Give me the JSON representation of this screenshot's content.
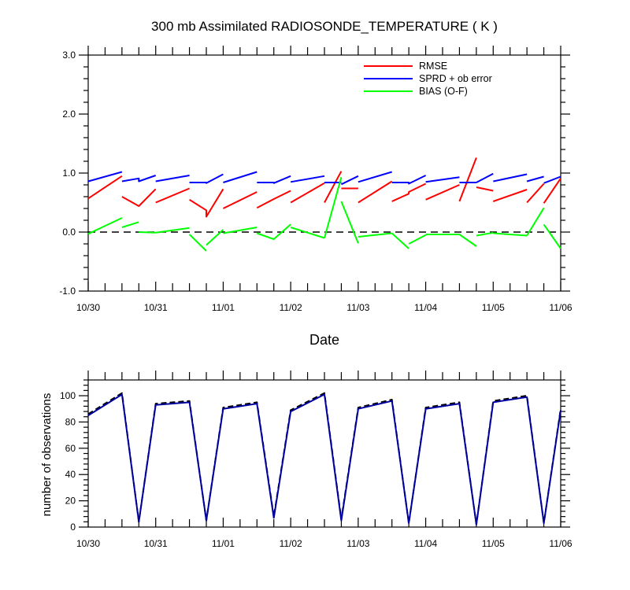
{
  "chart_data": [
    {
      "type": "line",
      "title": "300 mb Assimilated RADIOSONDE_TEMPERATURE ( K )",
      "xlabel": "Date",
      "ylabel": "",
      "xlim": [
        "10/30 00:00",
        "11/06 00:00"
      ],
      "ylim": [
        -1.0,
        3.0
      ],
      "yticks": [
        "-1.0",
        "0.0",
        "1.0",
        "2.0",
        "3.0"
      ],
      "xtick_labels": [
        "10/30",
        "10/31",
        "11/01",
        "11/02",
        "11/03",
        "11/04",
        "11/05",
        "11/06"
      ],
      "reference_line": {
        "y": 0.0,
        "style": "dashed",
        "color": "#000000"
      },
      "legend_position": "top-right",
      "series": [
        {
          "name": "RMSE",
          "color": "#ff0000",
          "segments": [
            [
              [
                "10/30 00:00",
                0.57
              ],
              [
                "10/30 12:00",
                0.95
              ]
            ],
            [
              [
                "10/30 12:00",
                0.6
              ],
              [
                "10/30 18:00",
                0.44
              ],
              [
                "10/31 00:00",
                0.73
              ]
            ],
            [
              [
                "10/31 00:00",
                0.5
              ],
              [
                "10/31 12:00",
                0.74
              ]
            ],
            [
              [
                "10/31 12:00",
                0.55
              ],
              [
                "10/31 18:00",
                0.37
              ],
              [
                "10/31 18:00",
                0.26
              ],
              [
                "11/01 00:00",
                0.73
              ]
            ],
            [
              [
                "11/01 00:00",
                0.4
              ],
              [
                "11/01 12:00",
                0.68
              ]
            ],
            [
              [
                "11/01 12:00",
                0.41
              ],
              [
                "11/01 18:00",
                0.56
              ],
              [
                "11/02 00:00",
                0.7
              ]
            ],
            [
              [
                "11/02 00:00",
                0.5
              ],
              [
                "11/02 12:00",
                0.83
              ]
            ],
            [
              [
                "11/02 12:00",
                0.5
              ],
              [
                "11/02 18:00",
                1.03
              ]
            ],
            [
              [
                "11/02 18:00",
                0.74
              ],
              [
                "11/03 00:00",
                0.74
              ]
            ],
            [
              [
                "11/03 00:00",
                0.5
              ],
              [
                "11/03 12:00",
                0.86
              ]
            ],
            [
              [
                "11/03 12:00",
                0.52
              ],
              [
                "11/03 18:00",
                0.65
              ],
              [
                "11/03 18:00",
                0.68
              ],
              [
                "11/04 00:00",
                0.82
              ]
            ],
            [
              [
                "11/04 00:00",
                0.55
              ],
              [
                "11/04 12:00",
                0.8
              ]
            ],
            [
              [
                "11/04 12:00",
                0.52
              ],
              [
                "11/04 18:00",
                1.26
              ]
            ],
            [
              [
                "11/04 18:00",
                0.76
              ],
              [
                "11/05 00:00",
                0.7
              ]
            ],
            [
              [
                "11/05 00:00",
                0.52
              ],
              [
                "11/05 12:00",
                0.72
              ]
            ],
            [
              [
                "11/05 12:00",
                0.5
              ],
              [
                "11/05 18:00",
                0.82
              ]
            ],
            [
              [
                "11/05 18:00",
                0.49
              ],
              [
                "11/06 00:00",
                0.91
              ]
            ]
          ]
        },
        {
          "name": "SPRD + ob error",
          "color": "#0000ff",
          "segments": [
            [
              [
                "10/30 00:00",
                0.86
              ],
              [
                "10/30 12:00",
                1.02
              ]
            ],
            [
              [
                "10/30 12:00",
                0.86
              ],
              [
                "10/30 18:00",
                0.91
              ],
              [
                "10/30 18:00",
                0.86
              ],
              [
                "11/31 00:00",
                0.96
              ]
            ],
            [
              [
                "10/31 00:00",
                0.86
              ],
              [
                "10/31 12:00",
                0.96
              ]
            ],
            [
              [
                "10/31 12:00",
                0.84
              ],
              [
                "10/31 18:00",
                0.84
              ],
              [
                "10/31 18:00",
                0.83
              ],
              [
                "11/01 00:00",
                0.98
              ]
            ],
            [
              [
                "11/01 00:00",
                0.84
              ],
              [
                "11/01 12:00",
                1.02
              ]
            ],
            [
              [
                "11/01 12:00",
                0.84
              ],
              [
                "11/01 18:00",
                0.84
              ],
              [
                "11/01 18:00",
                0.83
              ],
              [
                "11/02 00:00",
                0.95
              ]
            ],
            [
              [
                "11/02 00:00",
                0.85
              ],
              [
                "11/02 12:00",
                0.95
              ]
            ],
            [
              [
                "11/02 12:00",
                0.84
              ],
              [
                "11/02 18:00",
                0.84
              ]
            ],
            [
              [
                "11/02 18:00",
                0.81
              ],
              [
                "11/03 00:00",
                0.95
              ]
            ],
            [
              [
                "11/03 00:00",
                0.85
              ],
              [
                "11/03 12:00",
                1.02
              ]
            ],
            [
              [
                "11/03 12:00",
                0.84
              ],
              [
                "11/03 18:00",
                0.84
              ],
              [
                "11/03 18:00",
                0.82
              ],
              [
                "11/04 00:00",
                0.96
              ]
            ],
            [
              [
                "11/04 00:00",
                0.85
              ],
              [
                "11/04 12:00",
                0.93
              ]
            ],
            [
              [
                "11/04 12:00",
                0.84
              ],
              [
                "11/04 18:00",
                0.84
              ]
            ],
            [
              [
                "11/04 18:00",
                0.84
              ],
              [
                "11/05 00:00",
                0.99
              ]
            ],
            [
              [
                "11/05 00:00",
                0.86
              ],
              [
                "11/05 12:00",
                0.98
              ]
            ],
            [
              [
                "11/05 12:00",
                0.86
              ],
              [
                "11/05 18:00",
                0.94
              ]
            ],
            [
              [
                "11/05 18:00",
                0.83
              ],
              [
                "11/06 00:00",
                0.94
              ]
            ]
          ]
        },
        {
          "name": "BIAS (O-F)",
          "color": "#00ff00",
          "segments": [
            [
              [
                "10/30 00:00",
                -0.03
              ],
              [
                "10/30 12:00",
                0.24
              ]
            ],
            [
              [
                "10/30 12:00",
                0.08
              ],
              [
                "10/30 18:00",
                0.17
              ]
            ],
            [
              [
                "10/30 18:00",
                0.0
              ],
              [
                "10/31 00:00",
                -0.01
              ],
              [
                "10/31 12:00",
                0.07
              ]
            ],
            [
              [
                "10/31 12:00",
                -0.04
              ],
              [
                "10/31 18:00",
                -0.32
              ]
            ],
            [
              [
                "10/31 18:00",
                -0.22
              ],
              [
                "11/01 00:00",
                0.04
              ]
            ],
            [
              [
                "11/01 00:00",
                -0.02
              ],
              [
                "11/01 12:00",
                0.08
              ]
            ],
            [
              [
                "11/01 12:00",
                -0.02
              ],
              [
                "11/01 18:00",
                -0.12
              ],
              [
                "11/02 00:00",
                0.13
              ]
            ],
            [
              [
                "11/02 00:00",
                0.08
              ],
              [
                "11/02 12:00",
                -0.1
              ]
            ],
            [
              [
                "11/02 12:00",
                -0.1
              ],
              [
                "11/02 18:00",
                0.93
              ]
            ],
            [
              [
                "11/02 18:00",
                0.52
              ],
              [
                "11/03 00:00",
                -0.19
              ]
            ],
            [
              [
                "11/03 00:00",
                -0.08
              ],
              [
                "11/03 12:00",
                -0.02
              ]
            ],
            [
              [
                "11/03 12:00",
                -0.02
              ],
              [
                "11/03 18:00",
                -0.28
              ]
            ],
            [
              [
                "11/03 18:00",
                -0.2
              ],
              [
                "11/04 00:00",
                -0.05
              ]
            ],
            [
              [
                "11/04 00:00",
                -0.04
              ],
              [
                "11/04 12:00",
                -0.04
              ]
            ],
            [
              [
                "11/04 12:00",
                -0.04
              ],
              [
                "11/04 18:00",
                -0.24
              ]
            ],
            [
              [
                "11/04 18:00",
                -0.06
              ],
              [
                "11/05 00:00",
                -0.01
              ]
            ],
            [
              [
                "11/05 00:00",
                -0.02
              ],
              [
                "11/05 12:00",
                -0.06
              ]
            ],
            [
              [
                "11/05 12:00",
                -0.06
              ],
              [
                "11/05 18:00",
                0.41
              ]
            ],
            [
              [
                "11/05 18:00",
                0.13
              ],
              [
                "11/06 00:00",
                -0.28
              ]
            ]
          ]
        }
      ]
    },
    {
      "type": "line",
      "title": "",
      "xlabel": "",
      "ylabel": "number of observations",
      "xlim": [
        "10/30 00:00",
        "11/06 00:00"
      ],
      "ylim": [
        0,
        112
      ],
      "yticks": [
        "0",
        "20",
        "40",
        "60",
        "80",
        "100"
      ],
      "xtick_labels": [
        "10/30",
        "10/31",
        "11/01",
        "11/02",
        "11/03",
        "11/04",
        "11/05",
        "11/06"
      ],
      "series": [
        {
          "style": "dashed",
          "color": "#000000",
          "points": [
            [
              "10/30 00:00",
              86
            ],
            [
              "10/30 12:00",
              102
            ],
            [
              "10/30 18:00",
              4
            ],
            [
              "10/31 00:00",
              94
            ],
            [
              "10/31 12:00",
              96
            ],
            [
              "10/31 18:00",
              5
            ],
            [
              "11/01 00:00",
              91
            ],
            [
              "11/01 12:00",
              95
            ],
            [
              "11/01 18:00",
              8
            ],
            [
              "11/02 00:00",
              89
            ],
            [
              "11/02 12:00",
              102
            ],
            [
              "11/02 18:00",
              6
            ],
            [
              "11/03 00:00",
              91
            ],
            [
              "11/03 12:00",
              97
            ],
            [
              "11/03 18:00",
              3
            ],
            [
              "11/04 00:00",
              91
            ],
            [
              "11/04 12:00",
              95
            ],
            [
              "11/04 18:00",
              2
            ],
            [
              "11/05 00:00",
              96
            ],
            [
              "11/05 12:00",
              100
            ],
            [
              "11/05 18:00",
              3
            ],
            [
              "11/06 00:00",
              90
            ]
          ]
        },
        {
          "style": "solid",
          "color": "#0000a0",
          "points": [
            [
              "10/30 00:00",
              85
            ],
            [
              "10/30 12:00",
              101
            ],
            [
              "10/30 18:00",
              4
            ],
            [
              "10/31 00:00",
              93
            ],
            [
              "10/31 12:00",
              95
            ],
            [
              "10/31 18:00",
              5
            ],
            [
              "11/01 00:00",
              90
            ],
            [
              "11/01 12:00",
              94
            ],
            [
              "11/01 18:00",
              7
            ],
            [
              "11/02 00:00",
              88
            ],
            [
              "11/02 12:00",
              101
            ],
            [
              "11/02 18:00",
              5
            ],
            [
              "11/03 00:00",
              90
            ],
            [
              "11/03 12:00",
              96
            ],
            [
              "11/03 18:00",
              3
            ],
            [
              "11/04 00:00",
              90
            ],
            [
              "11/04 12:00",
              94
            ],
            [
              "11/04 18:00",
              2
            ],
            [
              "11/05 00:00",
              95
            ],
            [
              "11/05 12:00",
              99
            ],
            [
              "11/05 18:00",
              3
            ],
            [
              "11/06 00:00",
              89
            ]
          ]
        }
      ]
    }
  ]
}
